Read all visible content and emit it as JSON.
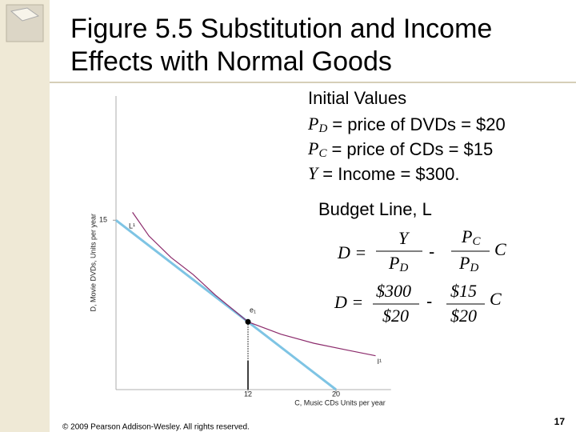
{
  "header": {
    "title_lines": [
      "Figure 5.5 Substitution and Income",
      "Effects with Normal Goods"
    ]
  },
  "initial_values": {
    "heading": "Initial Values",
    "lines": [
      {
        "symbol": "P",
        "sub": "D",
        "text": "= price of DVDs = $20"
      },
      {
        "symbol": "P",
        "sub": "C",
        "text": "= price of CDs = $15"
      },
      {
        "symbol": "Y",
        "text": "= Income = $300."
      }
    ]
  },
  "budget_line_heading": "Budget Line, L",
  "equation_1": {
    "lhs": "D =",
    "numerator_1": "Y",
    "denominator_1": {
      "symbol": "P",
      "sub": "D"
    },
    "operator": "-",
    "numerator_2": {
      "symbol": "P",
      "sub": "C"
    },
    "denominator_2": {
      "symbol": "P",
      "sub": "D"
    },
    "factor": "C"
  },
  "equation_2": {
    "lhs": "D =",
    "numerator_1": "$300",
    "denominator_1": "$20",
    "operator": "-",
    "numerator_2": "$15",
    "denominator_2": "$20",
    "factor": "C"
  },
  "chart_data": {
    "type": "line",
    "y_label": "D, Movie DVDs, Units per year",
    "x_label": "C, Music CDs Units per year",
    "xlim": [
      0,
      25
    ],
    "ylim": [
      0,
      26
    ],
    "xticks": [
      12,
      20
    ],
    "yticks": [
      15
    ],
    "series": [
      {
        "name": "L¹",
        "color": "#7ec4e4",
        "x": [
          0,
          20
        ],
        "values": [
          15,
          0
        ]
      },
      {
        "name": "I¹",
        "color": "#8b2a6b",
        "x": [
          1.5,
          3,
          5,
          7,
          9,
          12,
          15,
          18,
          21,
          23.6
        ],
        "values": [
          15.7,
          13.6,
          11.7,
          10.2,
          8.4,
          6,
          4.9,
          4.1,
          3.5,
          3.0
        ]
      }
    ],
    "points": [
      {
        "name": "e₁",
        "x": 12,
        "y": 6
      }
    ]
  },
  "footer": {
    "copyright": "© 2009 Pearson Addison-Wesley. All rights reserved.",
    "page_number": 17
  }
}
